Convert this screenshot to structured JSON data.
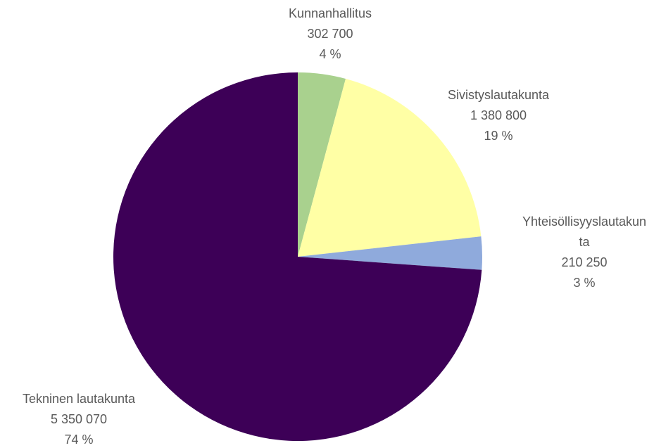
{
  "chart_data": {
    "type": "pie",
    "categories": [
      "Kunnanhallitus",
      "Sivistyslautakunta",
      "Yhteisöllisyyslautakunta",
      "Tekninen lautakunta"
    ],
    "values": [
      302700,
      1380800,
      210250,
      5350070
    ],
    "value_labels": [
      "302 700",
      "1 380 800",
      "210 250",
      "5 350 070"
    ],
    "percent_labels": [
      "4 %",
      "19 %",
      "3 %",
      "74 %"
    ],
    "colors": [
      "#a9d18e",
      "#ffffa5",
      "#8faadc",
      "#3d0057"
    ]
  }
}
